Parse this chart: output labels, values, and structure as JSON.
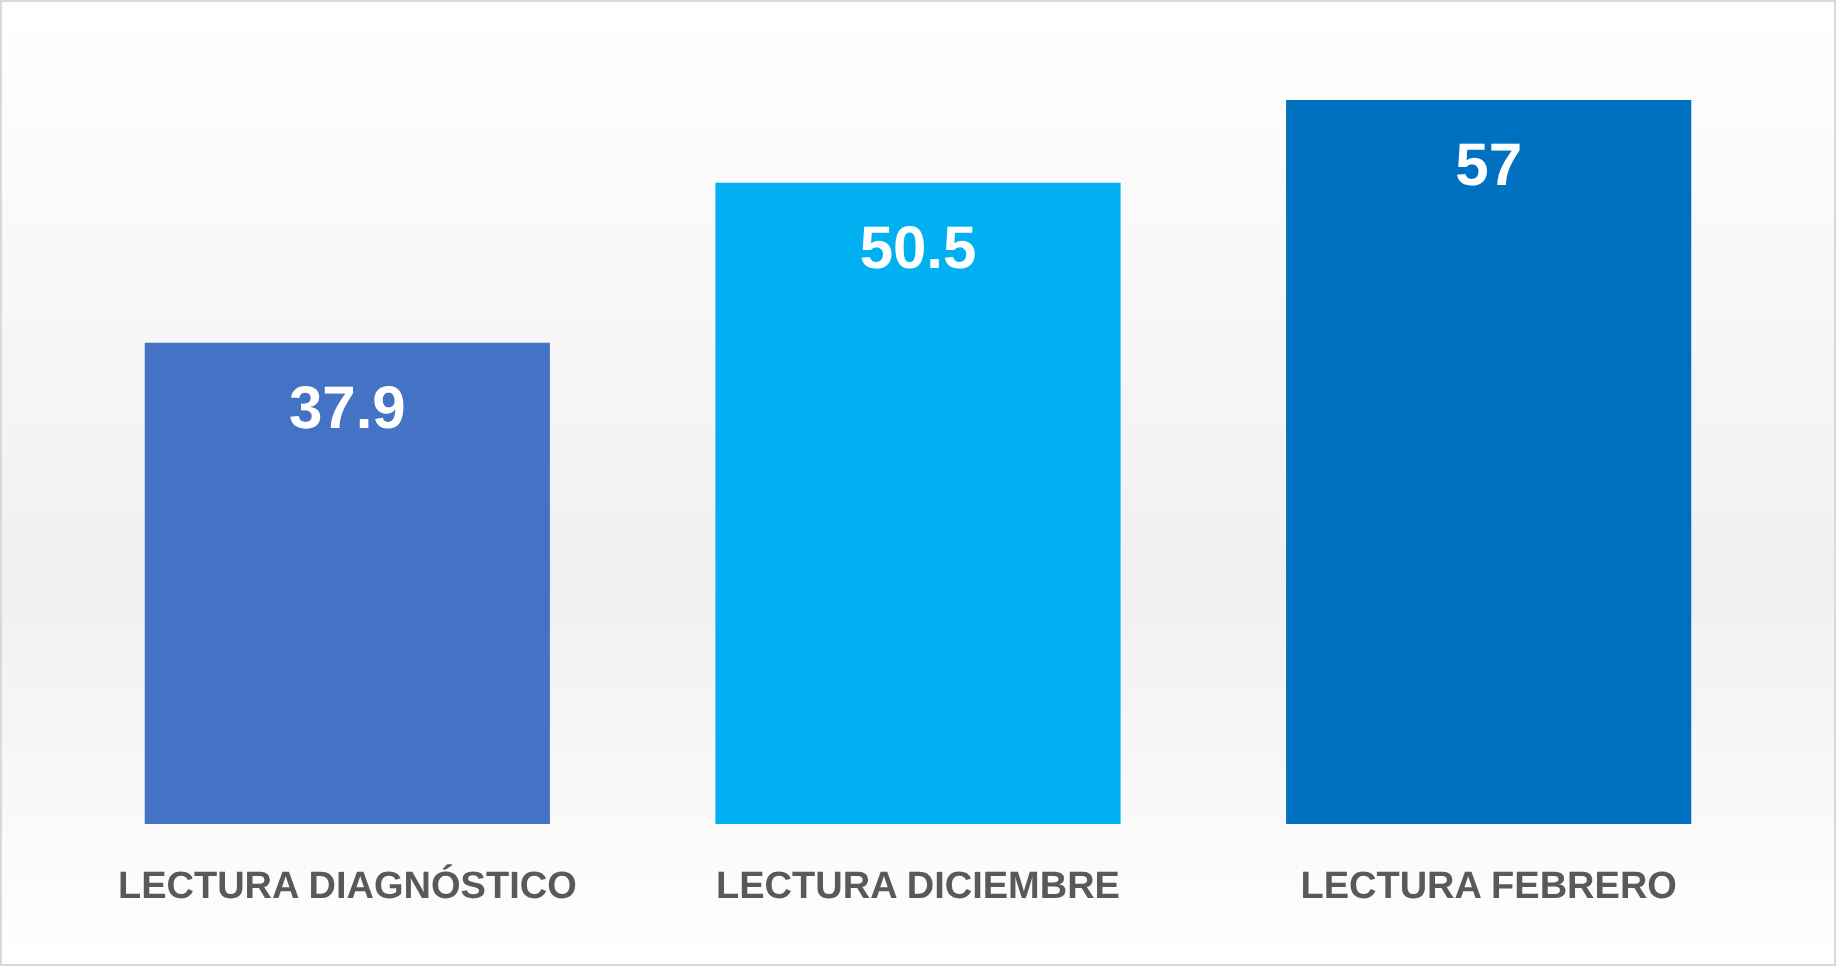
{
  "chart_data": {
    "type": "bar",
    "categories": [
      "LECTURA DIAGNÓSTICO",
      "LECTURA DICIEMBRE",
      "LECTURA FEBRERO"
    ],
    "values": [
      37.9,
      50.5,
      57
    ],
    "colors": [
      "#4472c4",
      "#00b0f0",
      "#0070c0"
    ],
    "data_labels": true
  }
}
